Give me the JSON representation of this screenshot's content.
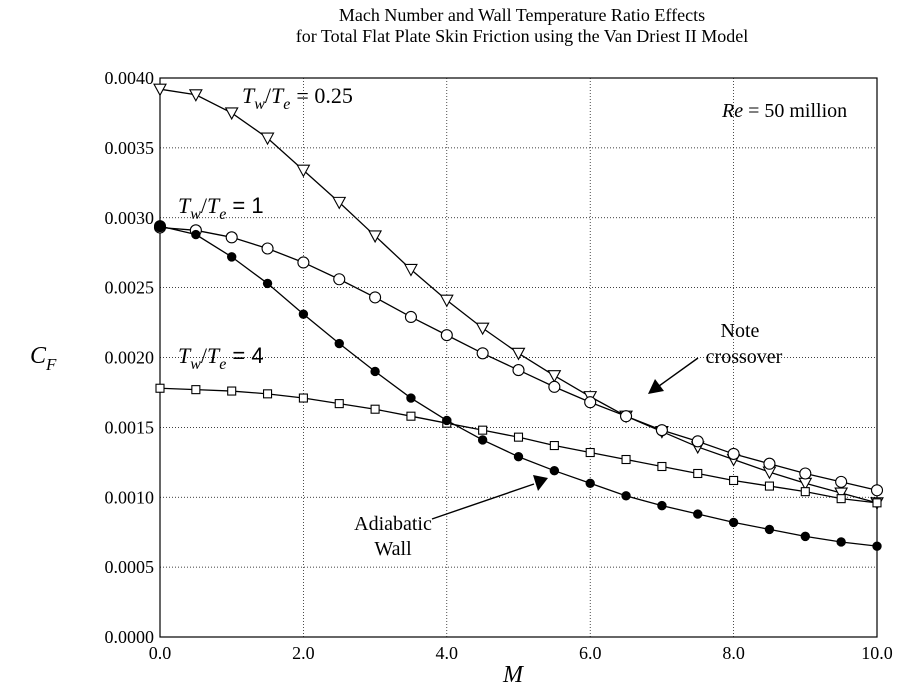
{
  "chart_data": {
    "type": "line",
    "title": "Mach Number and Wall Temperature Ratio Effects",
    "subtitle": "for Total Flat Plate Skin Friction using the Van Driest II Model",
    "xlabel": "M",
    "ylabel_main": "C",
    "ylabel_sub": "F",
    "xlim": [
      0,
      10
    ],
    "ylim": [
      0,
      0.004
    ],
    "xticks": [
      0,
      2,
      4,
      6,
      8,
      10
    ],
    "xtick_labels": [
      "0.0",
      "2.0",
      "4.0",
      "6.0",
      "8.0",
      "10.0"
    ],
    "yticks": [
      0,
      0.0005,
      0.001,
      0.0015,
      0.002,
      0.0025,
      0.003,
      0.0035,
      0.004
    ],
    "ytick_labels": [
      "0.0000",
      "0.0005",
      "0.0010",
      "0.0015",
      "0.0020",
      "0.0025",
      "0.0030",
      "0.0035",
      "0.0040"
    ],
    "grid": true,
    "x": [
      0,
      0.5,
      1,
      1.5,
      2,
      2.5,
      3,
      3.5,
      4,
      4.5,
      5,
      5.5,
      6,
      6.5,
      7,
      7.5,
      8,
      8.5,
      9,
      9.5,
      10
    ],
    "series": [
      {
        "key": "tw025",
        "marker": "triangle-down",
        "values": [
          0.00392,
          0.00388,
          0.00375,
          0.00357,
          0.00334,
          0.00311,
          0.00287,
          0.00263,
          0.00241,
          0.00221,
          0.00203,
          0.00187,
          0.00172,
          0.00158,
          0.00147,
          0.00136,
          0.00127,
          0.00118,
          0.0011,
          0.00103,
          0.00096
        ]
      },
      {
        "key": "tw1",
        "marker": "circle-open",
        "values": [
          0.00293,
          0.00291,
          0.00286,
          0.00278,
          0.00268,
          0.00256,
          0.00243,
          0.00229,
          0.00216,
          0.00203,
          0.00191,
          0.00179,
          0.00168,
          0.00158,
          0.00148,
          0.0014,
          0.00131,
          0.00124,
          0.00117,
          0.00111,
          0.00105
        ]
      },
      {
        "key": "tw4",
        "marker": "square",
        "values": [
          0.00178,
          0.00177,
          0.00176,
          0.00174,
          0.00171,
          0.00167,
          0.00163,
          0.00158,
          0.00153,
          0.00148,
          0.00143,
          0.00137,
          0.00132,
          0.00127,
          0.00122,
          0.00117,
          0.00112,
          0.00108,
          0.00104,
          0.00099,
          0.00096
        ]
      },
      {
        "key": "adiabatic",
        "marker": "circle-filled",
        "values": [
          0.00294,
          0.00288,
          0.00272,
          0.00253,
          0.00231,
          0.0021,
          0.0019,
          0.00171,
          0.00155,
          0.00141,
          0.00129,
          0.00119,
          0.0011,
          0.00101,
          0.00094,
          0.00088,
          0.00082,
          0.00077,
          0.00072,
          0.00068,
          0.00065
        ]
      }
    ],
    "annotations": {
      "tw025_label_value": "= 0.25",
      "tw1_label_value": "= 1",
      "tw4_label_value": "= 4",
      "ratio_num": "T",
      "ratio_num_sub": "w",
      "ratio_den": "T",
      "ratio_den_sub": "e",
      "re_label": "Re",
      "re_value": "= 50 million",
      "crossover_line1": "Note",
      "crossover_line2": "crossover",
      "adiabatic_line1": "Adiabatic",
      "adiabatic_line2": "Wall"
    }
  }
}
